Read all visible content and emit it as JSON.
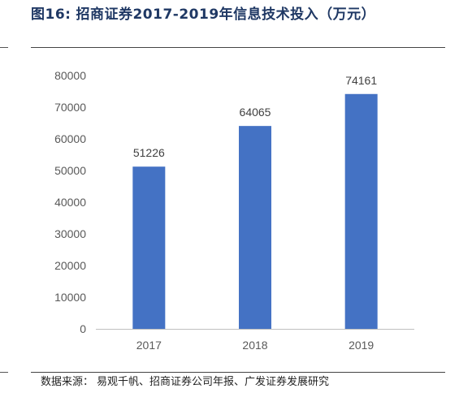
{
  "figure": {
    "label": "图16:",
    "title": "招商证券2017-2019年信息技术投入（万元）",
    "source_label": "数据来源：",
    "source_text": "易观千帆、招商证券公司年报、广发证券发展研究"
  },
  "chart_data": {
    "type": "bar",
    "categories": [
      "2017",
      "2018",
      "2019"
    ],
    "values": [
      51226,
      64065,
      74161
    ],
    "data_labels": [
      "51226",
      "64065",
      "74161"
    ],
    "ylim": [
      0,
      80000
    ],
    "yticks": [
      0,
      10000,
      20000,
      30000,
      40000,
      50000,
      60000,
      70000,
      80000
    ],
    "title": "招商证券2017-2019年信息技术投入（万元）",
    "xlabel": "",
    "ylabel": "",
    "grid": false,
    "legend": "none",
    "bar_color": "#4472c4",
    "axis_color": "#bfbfbf",
    "text_color": "#595959"
  }
}
